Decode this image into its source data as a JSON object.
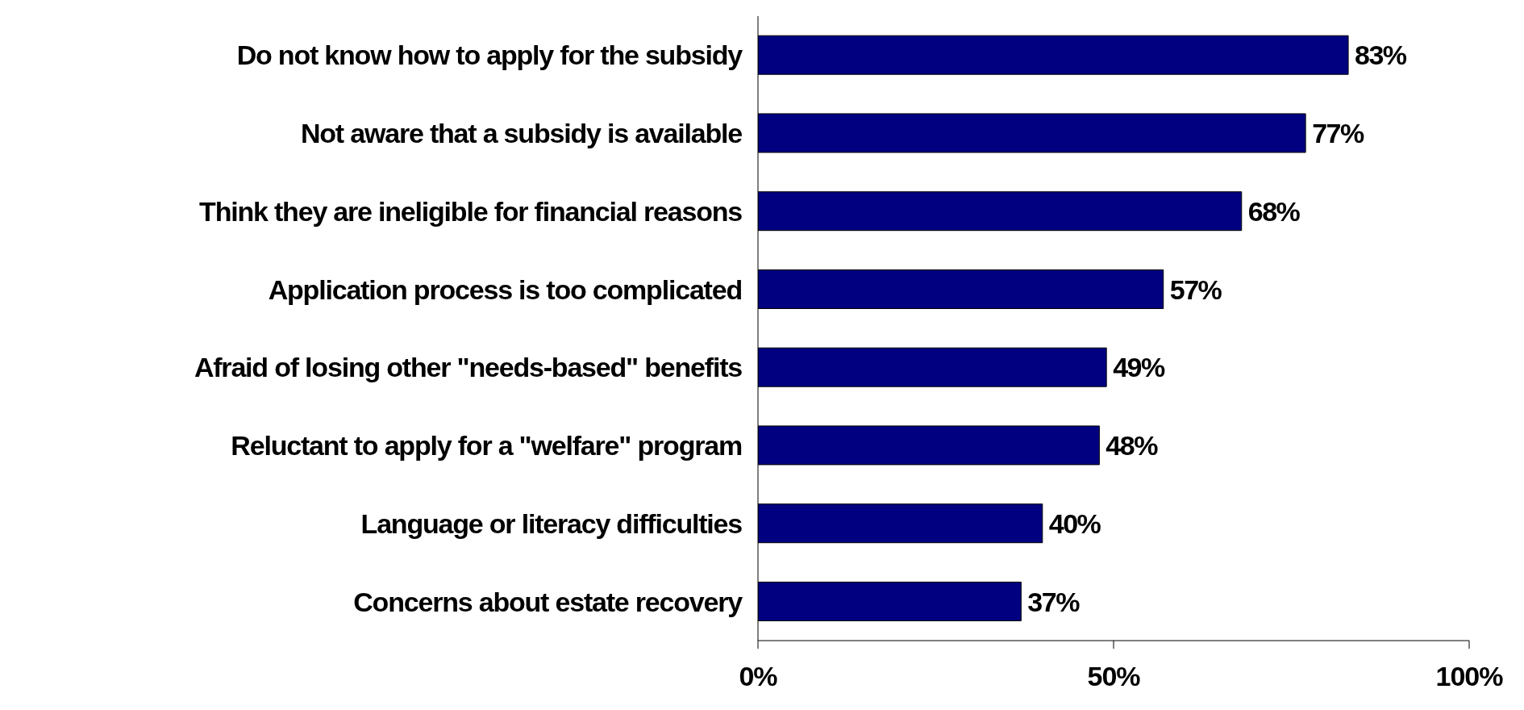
{
  "chart_data": {
    "type": "bar",
    "orientation": "horizontal",
    "categories": [
      "Do not know how to apply for the subsidy",
      "Not aware that a subsidy is available",
      "Think they are ineligible for financial reasons",
      "Application process is too complicated",
      "Afraid of losing other \"needs-based\" benefits",
      "Reluctant to apply for a \"welfare\" program",
      "Language or literacy difficulties",
      "Concerns about estate recovery"
    ],
    "values": [
      83,
      77,
      68,
      57,
      49,
      48,
      40,
      37
    ],
    "value_labels": [
      "83%",
      "77%",
      "68%",
      "57%",
      "49%",
      "48%",
      "40%",
      "37%"
    ],
    "color": "#000080",
    "xlim": [
      0,
      100
    ],
    "xticks": [
      {
        "value": 0,
        "label": "0%"
      },
      {
        "value": 50,
        "label": "50%"
      },
      {
        "value": 100,
        "label": "100%"
      }
    ],
    "grid": false,
    "legend": false
  }
}
